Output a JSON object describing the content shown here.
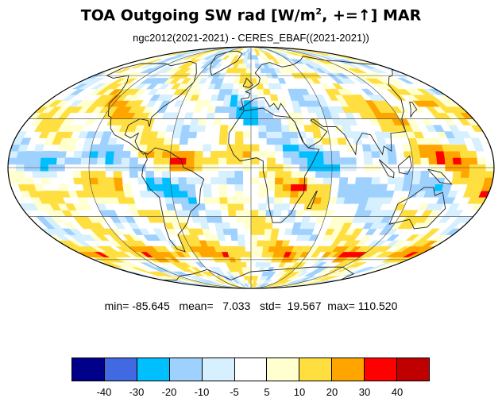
{
  "title": {
    "main": "TOA Outgoing SW rad [W/m",
    "sup": "2",
    "tail": ", +=↑] MAR"
  },
  "subtitle": "ngc2012(2021-2021) - CERES_EBAF((2021-2021))",
  "stats": {
    "min_label": "min=",
    "min": "-85.645",
    "mean_label": "mean=",
    "mean": "7.033",
    "std_label": "std=",
    "std": "19.567",
    "max_label": "max=",
    "max": "110.520"
  },
  "colorbar": {
    "colors": [
      "#00008b",
      "#4169e1",
      "#00bfff",
      "#9fd1ff",
      "#d6f0ff",
      "#ffffff",
      "#ffffd0",
      "#ffdf40",
      "#ffa500",
      "#ff0000",
      "#c00000"
    ],
    "labels": [
      "-40",
      "-30",
      "-20",
      "-10",
      "-5",
      "5",
      "10",
      "20",
      "30",
      "40"
    ]
  },
  "map": {
    "projection": "Mollweide",
    "central_longitude": 0,
    "gridlines": true,
    "coastlines": true
  }
}
